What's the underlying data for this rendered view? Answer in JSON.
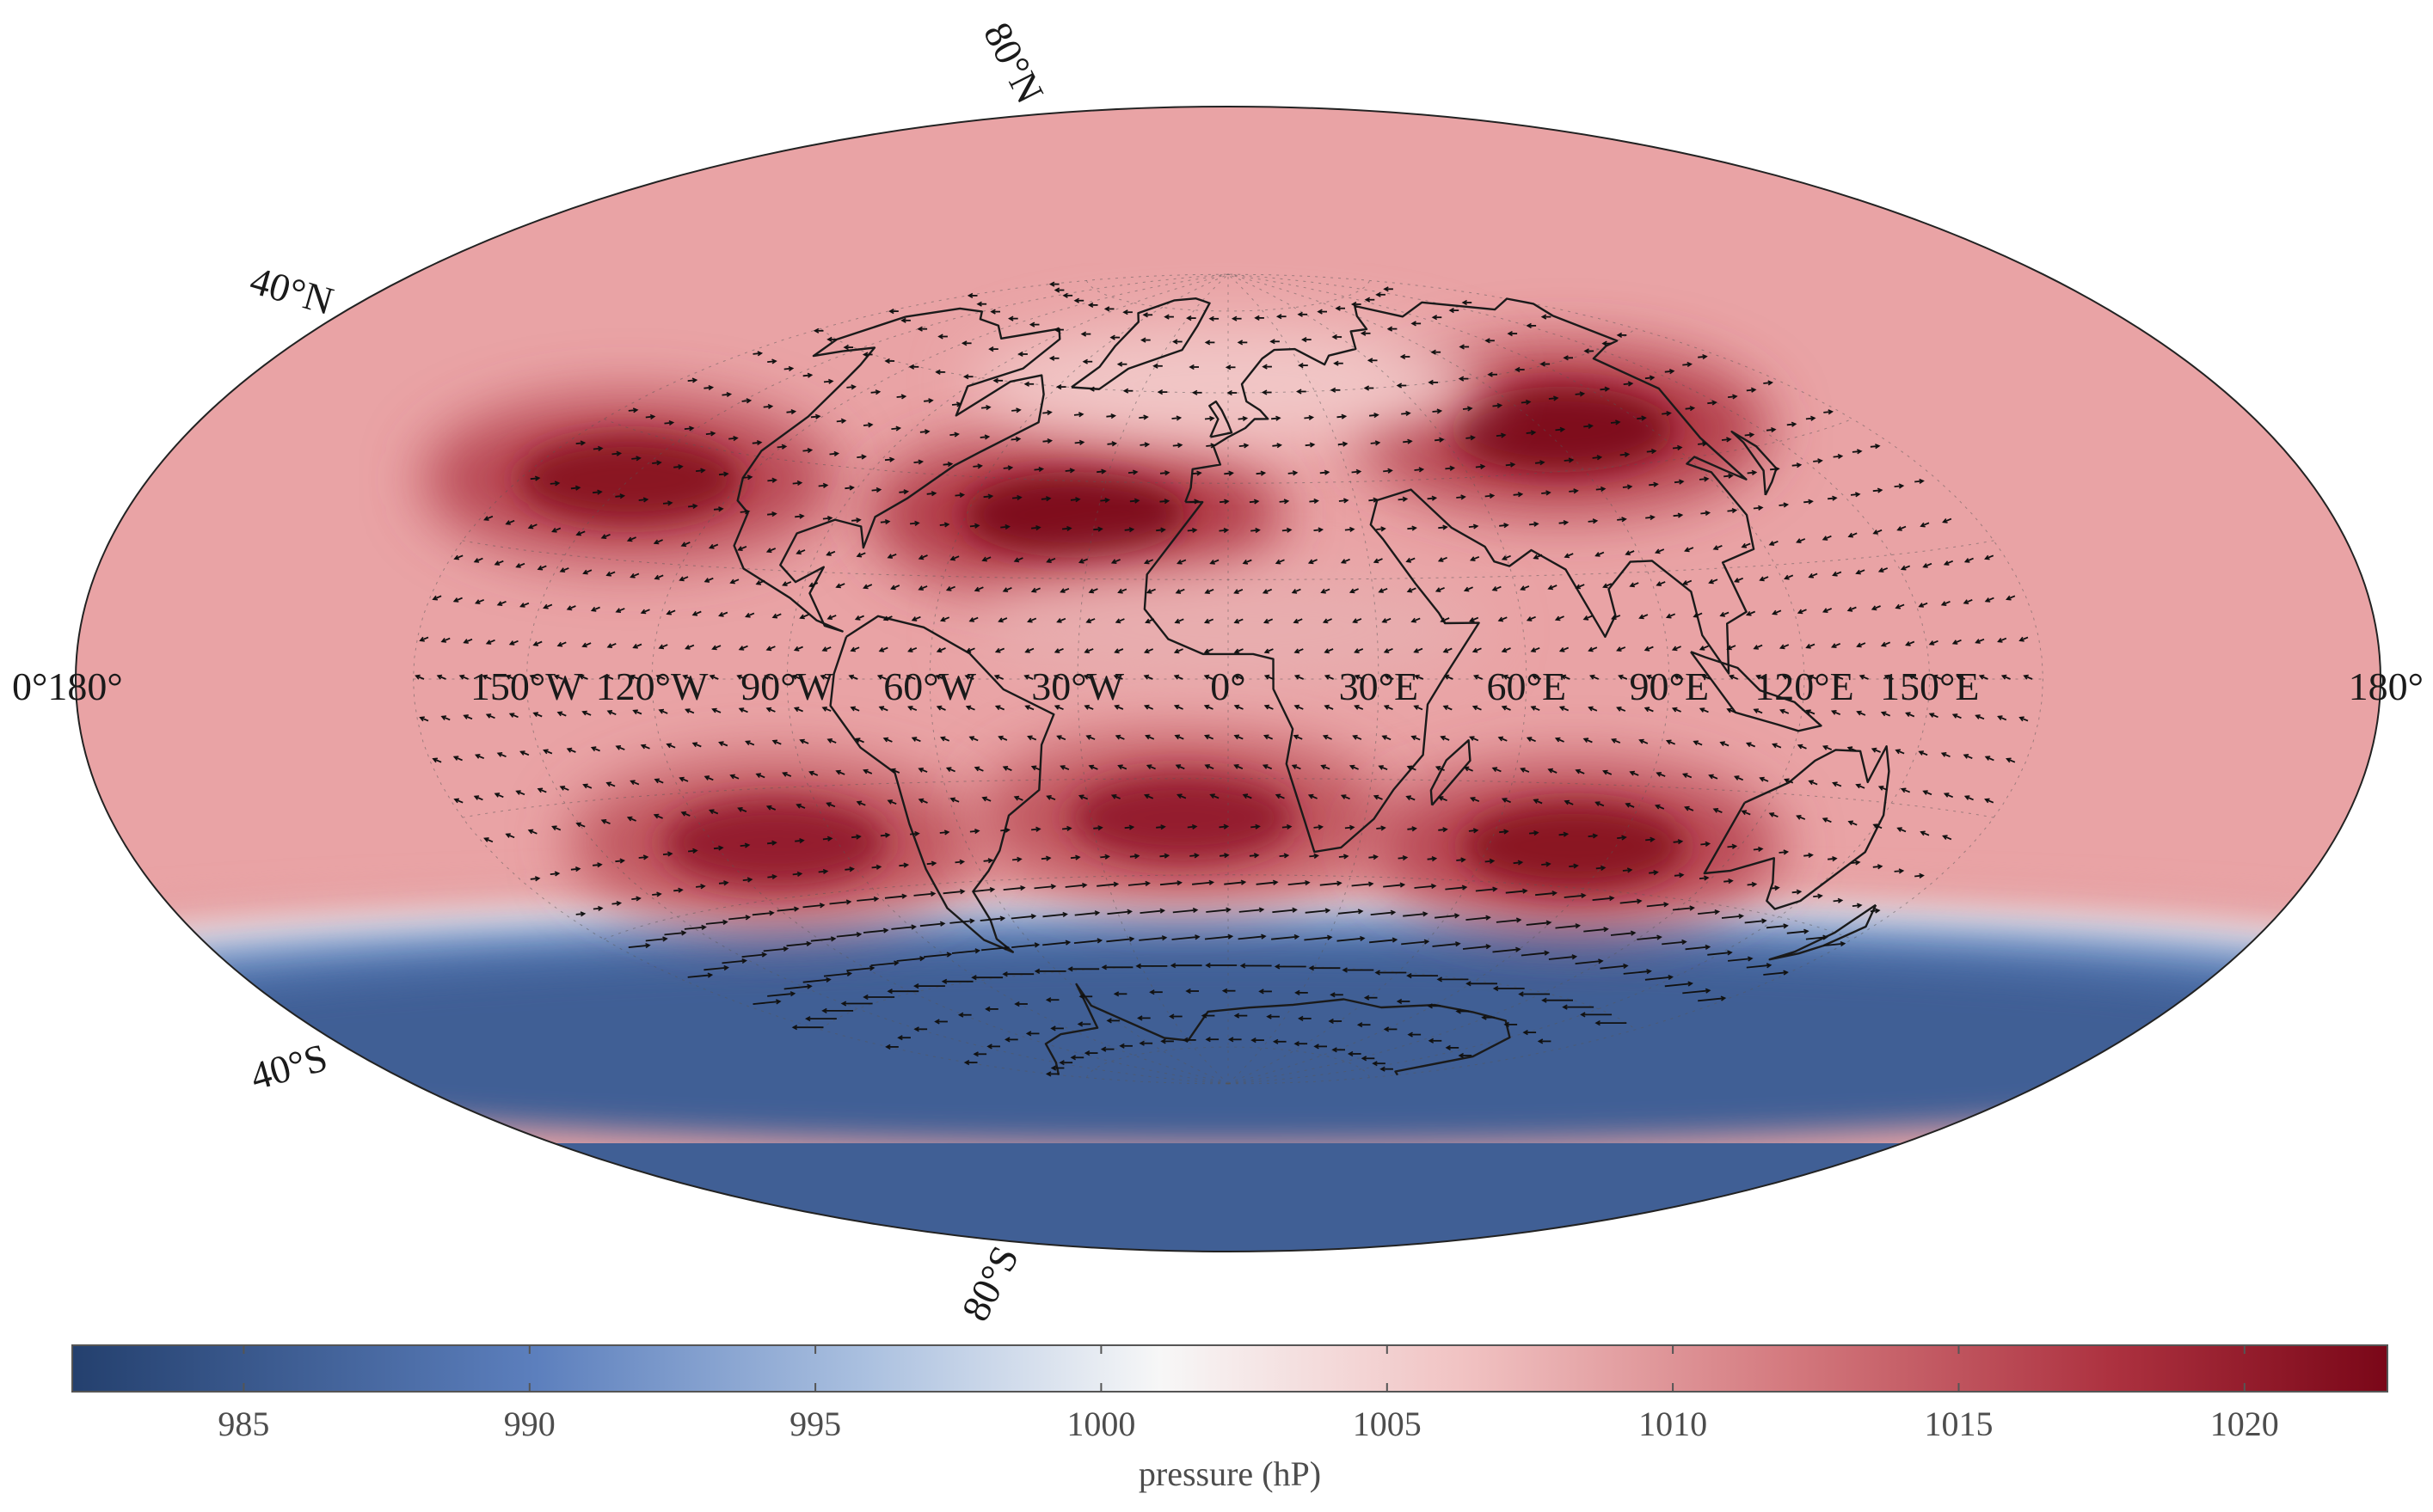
{
  "map": {
    "projection": "hammer-aitoff",
    "field": "sea level pressure with wind vectors",
    "lon_labels": [
      "0°180°",
      "150°W",
      "120°W",
      "90°W",
      "60°W",
      "30°W",
      "0°",
      "30°E",
      "60°E",
      "90°E",
      "120°E",
      "150°E",
      "180°"
    ],
    "lat_labels": [
      {
        "text": "80°N",
        "lat": 80
      },
      {
        "text": "40°N",
        "lat": 40
      },
      {
        "text": "40°S",
        "lat": -40
      },
      {
        "text": "80°S",
        "lat": -80
      }
    ],
    "pressure_features": [
      {
        "kind": "high",
        "lon": -150,
        "lat": 33,
        "value": 1021
      },
      {
        "kind": "high",
        "lon": -35,
        "lat": 33,
        "value": 1022
      },
      {
        "kind": "high",
        "lon": 95,
        "lat": 48,
        "value": 1022
      },
      {
        "kind": "high",
        "lon": -105,
        "lat": -30,
        "value": 1020
      },
      {
        "kind": "high",
        "lon": -10,
        "lat": -28,
        "value": 1020
      },
      {
        "kind": "high",
        "lon": 80,
        "lat": -32,
        "value": 1021
      },
      {
        "kind": "low",
        "lon": 0,
        "lat": -65,
        "value": 985
      },
      {
        "kind": "low",
        "lon": 0,
        "lat": 62,
        "value": 1006
      },
      {
        "kind": "low",
        "lon": 0,
        "lat": 10,
        "value": 1008
      }
    ]
  },
  "colorbar": {
    "min": 982,
    "max": 1022.5,
    "ticks": [
      "985",
      "990",
      "995",
      "1000",
      "1005",
      "1010",
      "1015",
      "1020"
    ],
    "label": "pressure (hP)",
    "colors": [
      "#24406e",
      "#5c7fbd",
      "#a9bfdf",
      "#f7f7f7",
      "#f1c3c3",
      "#d47a7f",
      "#ad3240",
      "#7a0718"
    ]
  }
}
